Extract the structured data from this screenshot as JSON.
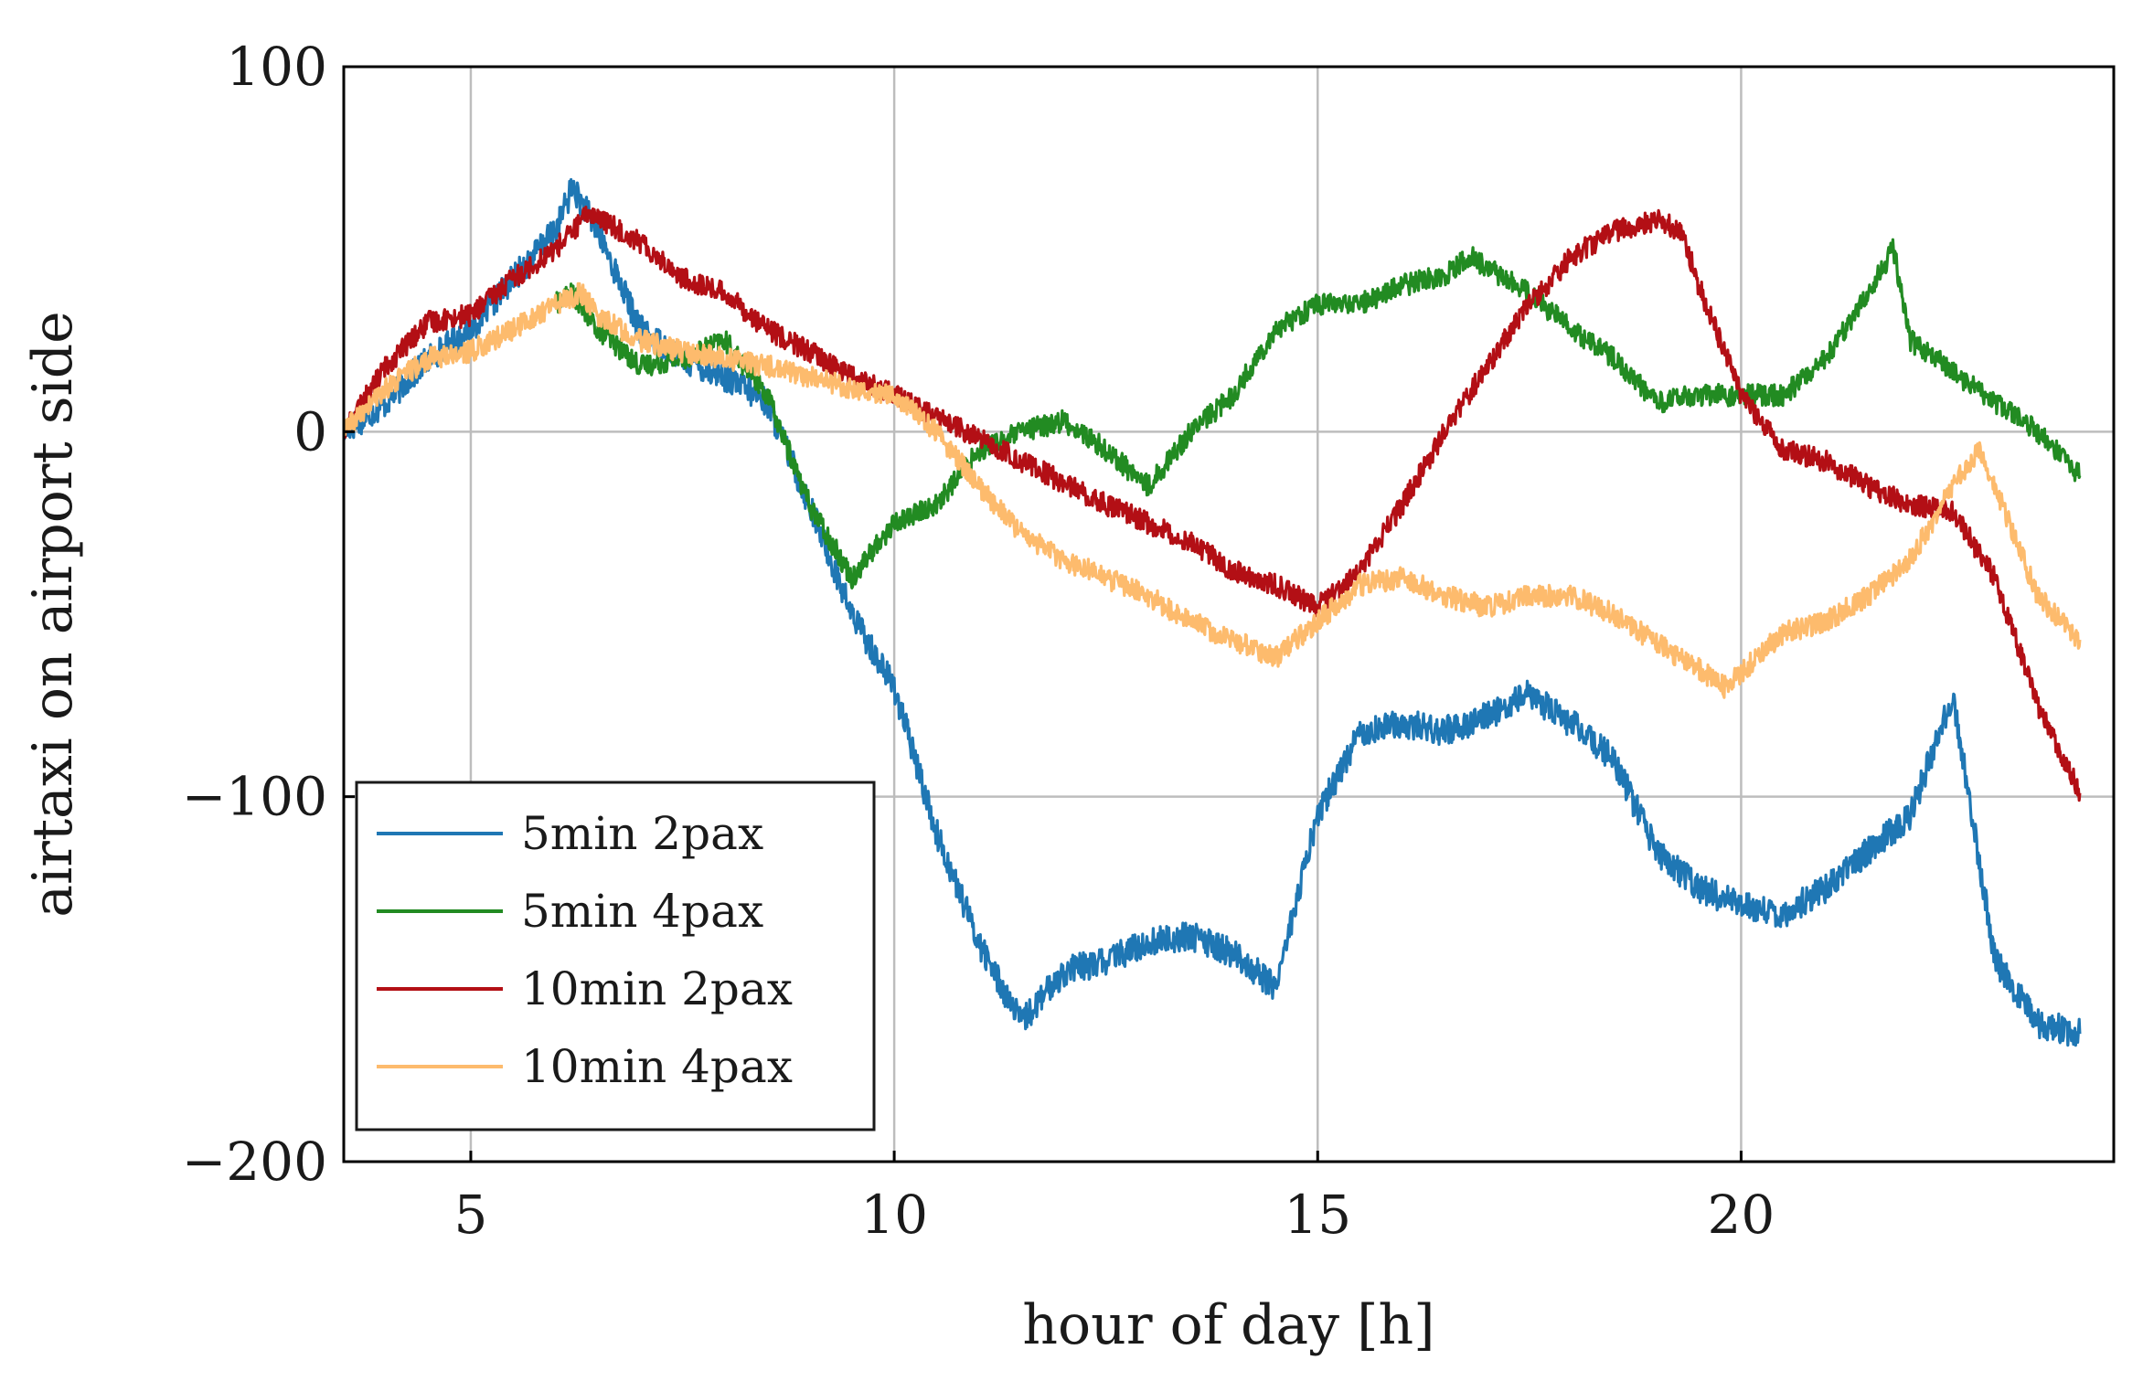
{
  "chart_data": {
    "type": "line",
    "title": "",
    "xlabel": "hour of day [h]",
    "ylabel": "airtaxi on airport side",
    "xlim": [
      3.5,
      24.4
    ],
    "ylim": [
      -200,
      100
    ],
    "xticks": [
      5,
      10,
      15,
      20
    ],
    "xtick_labels": [
      "5",
      "10",
      "15",
      "20"
    ],
    "yticks": [
      -200,
      -100,
      0,
      100
    ],
    "ytick_labels": [
      "−200",
      "−100",
      "0",
      "100"
    ],
    "grid": true,
    "legend_position": "bottom-left",
    "series": [
      {
        "name": "5min 2pax",
        "color": "#1f77b4",
        "noise": 4,
        "points": [
          [
            3.5,
            0
          ],
          [
            4,
            8
          ],
          [
            4.5,
            20
          ],
          [
            5,
            28
          ],
          [
            5.5,
            42
          ],
          [
            6,
            55
          ],
          [
            6.2,
            67
          ],
          [
            6.5,
            55
          ],
          [
            7,
            28
          ],
          [
            7.5,
            20
          ],
          [
            8,
            15
          ],
          [
            8.5,
            8
          ],
          [
            9,
            -20
          ],
          [
            9.5,
            -50
          ],
          [
            10,
            -70
          ],
          [
            10.5,
            -110
          ],
          [
            11,
            -140
          ],
          [
            11.5,
            -162
          ],
          [
            12,
            -148
          ],
          [
            12.5,
            -145
          ],
          [
            13,
            -140
          ],
          [
            13.5,
            -138
          ],
          [
            14,
            -143
          ],
          [
            14.5,
            -152
          ],
          [
            15,
            -105
          ],
          [
            15.5,
            -82
          ],
          [
            16,
            -80
          ],
          [
            16.5,
            -82
          ],
          [
            17,
            -78
          ],
          [
            17.5,
            -72
          ],
          [
            18,
            -80
          ],
          [
            18.5,
            -90
          ],
          [
            19,
            -115
          ],
          [
            19.5,
            -125
          ],
          [
            20,
            -130
          ],
          [
            20.5,
            -132
          ],
          [
            21,
            -125
          ],
          [
            21.5,
            -115
          ],
          [
            22,
            -105
          ],
          [
            22.5,
            -72
          ],
          [
            23,
            -145
          ],
          [
            23.5,
            -162
          ],
          [
            24,
            -165
          ]
        ]
      },
      {
        "name": "5min 4pax",
        "color": "#228b22",
        "noise": 3,
        "points": [
          [
            6,
            35
          ],
          [
            6.2,
            38
          ],
          [
            6.5,
            28
          ],
          [
            7,
            18
          ],
          [
            7.5,
            20
          ],
          [
            8,
            25
          ],
          [
            8.5,
            10
          ],
          [
            9,
            -20
          ],
          [
            9.5,
            -40
          ],
          [
            10,
            -25
          ],
          [
            10.5,
            -20
          ],
          [
            11,
            -5
          ],
          [
            11.5,
            0
          ],
          [
            12,
            3
          ],
          [
            12.5,
            -5
          ],
          [
            13,
            -15
          ],
          [
            13.5,
            0
          ],
          [
            14,
            10
          ],
          [
            14.5,
            28
          ],
          [
            15,
            35
          ],
          [
            15.5,
            35
          ],
          [
            16,
            40
          ],
          [
            16.5,
            43
          ],
          [
            16.8,
            48
          ],
          [
            17.5,
            38
          ],
          [
            18,
            28
          ],
          [
            18.5,
            20
          ],
          [
            19,
            8
          ],
          [
            19.5,
            10
          ],
          [
            20,
            10
          ],
          [
            20.5,
            10
          ],
          [
            21,
            20
          ],
          [
            21.5,
            38
          ],
          [
            21.8,
            50
          ],
          [
            22,
            25
          ],
          [
            23,
            8
          ],
          [
            23.5,
            0
          ],
          [
            24,
            -12
          ]
        ]
      },
      {
        "name": "10min 2pax",
        "color": "#b30f15",
        "noise": 3,
        "points": [
          [
            3.5,
            0
          ],
          [
            4,
            18
          ],
          [
            4.5,
            30
          ],
          [
            5,
            32
          ],
          [
            5.5,
            42
          ],
          [
            6,
            50
          ],
          [
            6.4,
            60
          ],
          [
            7,
            52
          ],
          [
            7.5,
            42
          ],
          [
            8,
            38
          ],
          [
            8.5,
            28
          ],
          [
            9,
            22
          ],
          [
            9.5,
            15
          ],
          [
            10,
            10
          ],
          [
            10.5,
            4
          ],
          [
            11,
            -2
          ],
          [
            11.5,
            -8
          ],
          [
            12,
            -14
          ],
          [
            12.5,
            -20
          ],
          [
            13,
            -25
          ],
          [
            13.5,
            -30
          ],
          [
            14,
            -38
          ],
          [
            14.5,
            -42
          ],
          [
            15,
            -48
          ],
          [
            15.5,
            -38
          ],
          [
            16,
            -20
          ],
          [
            16.5,
            0
          ],
          [
            17,
            18
          ],
          [
            17.5,
            35
          ],
          [
            18,
            48
          ],
          [
            18.5,
            55
          ],
          [
            19,
            58
          ],
          [
            19.3,
            55
          ],
          [
            19.5,
            40
          ],
          [
            20,
            10
          ],
          [
            20.5,
            -5
          ],
          [
            21,
            -8
          ],
          [
            21.5,
            -15
          ],
          [
            22,
            -20
          ],
          [
            22.5,
            -22
          ],
          [
            23,
            -40
          ],
          [
            23.5,
            -75
          ],
          [
            24,
            -99
          ]
        ]
      },
      {
        "name": "10min 4pax",
        "color": "#fdbb6d",
        "noise": 3,
        "points": [
          [
            3.5,
            0
          ],
          [
            4,
            12
          ],
          [
            4.5,
            20
          ],
          [
            5,
            22
          ],
          [
            5.5,
            28
          ],
          [
            6,
            35
          ],
          [
            6.3,
            38
          ],
          [
            6.5,
            32
          ],
          [
            7,
            25
          ],
          [
            7.5,
            22
          ],
          [
            8,
            20
          ],
          [
            8.5,
            18
          ],
          [
            9,
            15
          ],
          [
            9.5,
            12
          ],
          [
            10,
            10
          ],
          [
            10.5,
            0
          ],
          [
            11,
            -15
          ],
          [
            11.5,
            -28
          ],
          [
            12,
            -35
          ],
          [
            12.5,
            -40
          ],
          [
            13,
            -45
          ],
          [
            13.5,
            -52
          ],
          [
            14,
            -57
          ],
          [
            14.5,
            -62
          ],
          [
            15,
            -52
          ],
          [
            15.5,
            -42
          ],
          [
            16,
            -40
          ],
          [
            16.5,
            -45
          ],
          [
            17,
            -48
          ],
          [
            17.5,
            -45
          ],
          [
            18,
            -45
          ],
          [
            18.5,
            -50
          ],
          [
            19,
            -58
          ],
          [
            19.5,
            -65
          ],
          [
            19.8,
            -70
          ],
          [
            20,
            -66
          ],
          [
            20.5,
            -55
          ],
          [
            21,
            -52
          ],
          [
            21.5,
            -45
          ],
          [
            22,
            -35
          ],
          [
            22.5,
            -15
          ],
          [
            22.8,
            -5
          ],
          [
            23,
            -15
          ],
          [
            23.5,
            -45
          ],
          [
            24,
            -57
          ]
        ]
      }
    ]
  }
}
